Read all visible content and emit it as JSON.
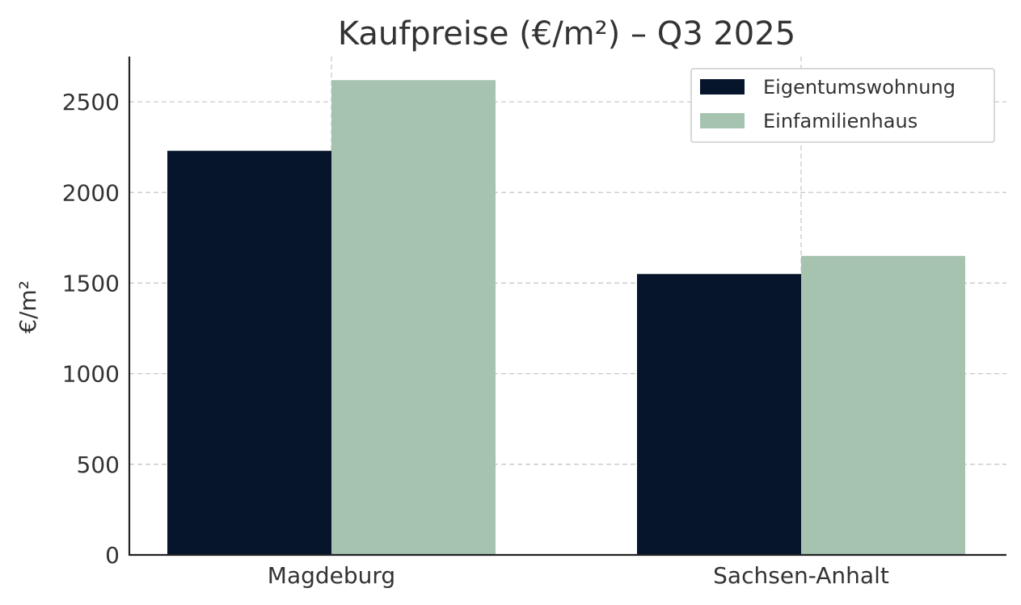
{
  "chart_data": {
    "type": "bar",
    "title": "Kaufpreise (€/m²) – Q3 2025",
    "xlabel": "",
    "ylabel": "€/m²",
    "categories": [
      "Magdeburg",
      "Sachsen-Anhalt"
    ],
    "series": [
      {
        "name": "Eigentumswohnung",
        "values": [
          2230,
          1550
        ],
        "color": "#06152b"
      },
      {
        "name": "Einfamilienhaus",
        "values": [
          2620,
          1650
        ],
        "color": "#a6c3b0"
      }
    ],
    "ylim": [
      0,
      2750
    ],
    "yticks": [
      0,
      500,
      1000,
      1500,
      2000,
      2500
    ],
    "ytick_labels": [
      "0",
      "500",
      "1000",
      "1500",
      "2000",
      "2500"
    ],
    "grid": true,
    "legend_position": "top-right"
  }
}
